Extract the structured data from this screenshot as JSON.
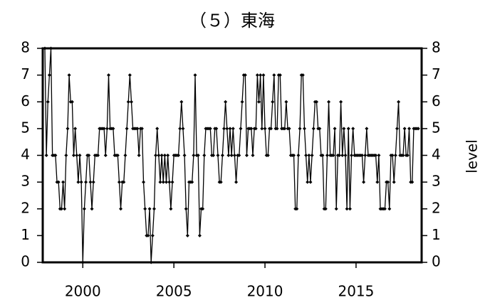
{
  "chart_data": {
    "type": "line",
    "title": "（５）東海",
    "y2label": "level",
    "xlim": [
      1997.8,
      2018.6
    ],
    "xticks": [
      2000,
      2005,
      2010,
      2015
    ],
    "ylim": [
      0,
      8
    ],
    "yticks": [
      0,
      1,
      2,
      3,
      4,
      5,
      6,
      7,
      8
    ],
    "y2lim": [
      0,
      8
    ],
    "y2ticks": [
      0,
      1,
      2,
      3,
      4,
      5,
      6,
      7,
      8
    ],
    "x": [
      1997.917,
      1998,
      1998.083,
      1998.167,
      1998.25,
      1998.333,
      1998.417,
      1998.5,
      1998.583,
      1998.667,
      1998.75,
      1998.833,
      1998.917,
      1999,
      1999.083,
      1999.167,
      1999.25,
      1999.333,
      1999.417,
      1999.5,
      1999.583,
      1999.667,
      1999.75,
      1999.833,
      1999.917,
      2000,
      2000.083,
      2000.167,
      2000.25,
      2000.333,
      2000.417,
      2000.5,
      2000.583,
      2000.667,
      2000.75,
      2000.833,
      2000.917,
      2001,
      2001.083,
      2001.167,
      2001.25,
      2001.333,
      2001.417,
      2001.5,
      2001.583,
      2001.667,
      2001.75,
      2001.833,
      2001.917,
      2002,
      2002.083,
      2002.167,
      2002.25,
      2002.333,
      2002.417,
      2002.5,
      2002.583,
      2002.667,
      2002.75,
      2002.833,
      2002.917,
      2003,
      2003.083,
      2003.167,
      2003.25,
      2003.333,
      2003.417,
      2003.5,
      2003.583,
      2003.667,
      2003.75,
      2003.833,
      2003.917,
      2004,
      2004.083,
      2004.167,
      2004.25,
      2004.333,
      2004.417,
      2004.5,
      2004.583,
      2004.667,
      2004.75,
      2004.833,
      2004.917,
      2005,
      2005.083,
      2005.167,
      2005.25,
      2005.333,
      2005.417,
      2005.5,
      2005.583,
      2005.667,
      2005.75,
      2005.833,
      2005.917,
      2006,
      2006.083,
      2006.167,
      2006.25,
      2006.333,
      2006.417,
      2006.5,
      2006.583,
      2006.667,
      2006.75,
      2006.833,
      2006.917,
      2007,
      2007.083,
      2007.167,
      2007.25,
      2007.333,
      2007.417,
      2007.5,
      2007.583,
      2007.667,
      2007.75,
      2007.833,
      2007.917,
      2008,
      2008.083,
      2008.167,
      2008.25,
      2008.333,
      2008.417,
      2008.5,
      2008.583,
      2008.667,
      2008.75,
      2008.833,
      2008.917,
      2009,
      2009.083,
      2009.167,
      2009.25,
      2009.333,
      2009.417,
      2009.5,
      2009.583,
      2009.667,
      2009.75,
      2009.833,
      2009.917,
      2010,
      2010.083,
      2010.167,
      2010.25,
      2010.333,
      2010.417,
      2010.5,
      2010.583,
      2010.667,
      2010.75,
      2010.833,
      2010.917,
      2011,
      2011.083,
      2011.167,
      2011.25,
      2011.333,
      2011.417,
      2011.5,
      2011.583,
      2011.667,
      2011.75,
      2011.833,
      2011.917,
      2012,
      2012.083,
      2012.167,
      2012.25,
      2012.333,
      2012.417,
      2012.5,
      2012.583,
      2012.667,
      2012.75,
      2012.833,
      2012.917,
      2013,
      2013.083,
      2013.167,
      2013.25,
      2013.333,
      2013.417,
      2013.5,
      2013.583,
      2013.667,
      2013.75,
      2013.833,
      2013.917,
      2014,
      2014.083,
      2014.167,
      2014.25,
      2014.333,
      2014.417,
      2014.5,
      2014.583,
      2014.667,
      2014.75,
      2014.833,
      2014.917,
      2015,
      2015.083,
      2015.167,
      2015.25,
      2015.333,
      2015.417,
      2015.5,
      2015.583,
      2015.667,
      2015.75,
      2015.833,
      2015.917,
      2016,
      2016.083,
      2016.167,
      2016.25,
      2016.333,
      2016.417,
      2016.5,
      2016.583,
      2016.667,
      2016.75,
      2016.833,
      2016.917,
      2017,
      2017.083,
      2017.167,
      2017.25,
      2017.333,
      2017.417,
      2017.5,
      2017.583,
      2017.667,
      2017.75,
      2017.833,
      2017.917,
      2018,
      2018.083,
      2018.167,
      2018.25,
      2018.333,
      2018.417
    ],
    "series": [
      {
        "color": "#000000",
        "values": [
          8,
          4,
          6,
          7,
          8,
          4,
          4,
          4,
          3,
          3,
          2,
          2,
          3,
          2,
          4,
          5,
          7,
          6,
          6,
          4,
          5,
          4,
          3,
          4,
          3,
          0,
          2,
          3,
          4,
          4,
          3,
          2,
          3,
          4,
          4,
          4,
          5,
          5,
          5,
          5,
          4,
          5,
          7,
          5,
          5,
          5,
          4,
          4,
          4,
          3,
          2,
          3,
          3,
          4,
          5,
          6,
          7,
          6,
          5,
          5,
          5,
          5,
          4,
          5,
          5,
          3,
          2,
          1,
          1,
          2,
          0,
          1,
          2,
          4,
          5,
          4,
          3,
          4,
          3,
          4,
          3,
          4,
          3,
          2,
          3,
          4,
          4,
          4,
          4,
          5,
          6,
          5,
          4,
          2,
          1,
          3,
          3,
          3,
          4,
          7,
          4,
          4,
          1,
          2,
          2,
          4,
          5,
          5,
          5,
          5,
          4,
          4,
          5,
          5,
          4,
          3,
          3,
          4,
          5,
          6,
          5,
          4,
          5,
          4,
          5,
          4,
          3,
          4,
          4,
          5,
          6,
          7,
          7,
          4,
          5,
          5,
          5,
          4,
          5,
          5,
          7,
          6,
          7,
          5,
          7,
          5,
          4,
          4,
          5,
          5,
          6,
          7,
          5,
          5,
          7,
          7,
          5,
          5,
          5,
          6,
          5,
          5,
          4,
          4,
          4,
          2,
          2,
          4,
          5,
          7,
          7,
          5,
          4,
          3,
          4,
          3,
          4,
          5,
          6,
          6,
          5,
          5,
          4,
          4,
          2,
          2,
          4,
          6,
          4,
          4,
          4,
          5,
          2,
          4,
          4,
          6,
          4,
          5,
          4,
          2,
          5,
          2,
          4,
          5,
          4,
          4,
          4,
          4,
          4,
          4,
          3,
          4,
          5,
          4,
          4,
          4,
          4,
          4,
          4,
          3,
          4,
          2,
          2,
          2,
          2,
          3,
          3,
          2,
          4,
          4,
          3,
          4,
          5,
          6,
          4,
          4,
          4,
          5,
          4,
          4,
          5,
          3,
          3,
          5,
          5,
          5,
          5
        ]
      }
    ]
  }
}
